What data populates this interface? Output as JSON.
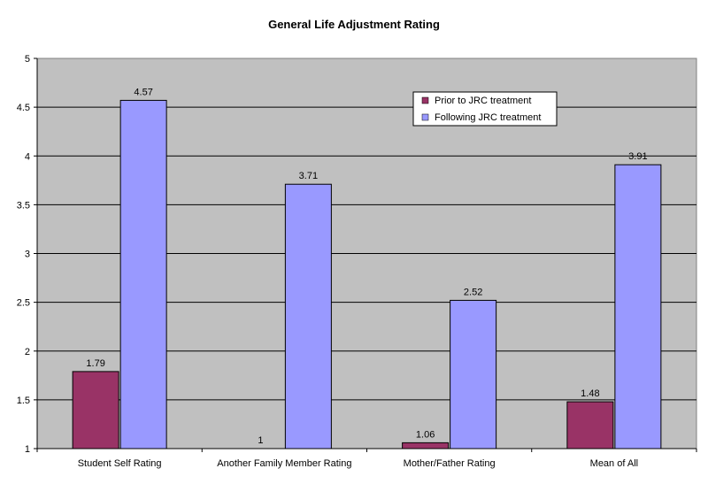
{
  "chart_data": {
    "type": "bar",
    "title": "General Life Adjustment Rating",
    "xlabel": "",
    "ylabel": "",
    "categories": [
      "Student Self Rating",
      "Another Family Member Rating",
      "Mother/Father Rating",
      "Mean of All"
    ],
    "series": [
      {
        "name": "Prior to JRC treatment",
        "color": "#993366",
        "values": [
          1.79,
          1.0,
          1.06,
          1.48
        ]
      },
      {
        "name": "Following JRC treatment",
        "color": "#9999ff",
        "values": [
          4.57,
          3.71,
          2.52,
          3.91
        ]
      }
    ],
    "ylim": [
      1,
      5
    ],
    "yticks": [
      "1",
      "1.5",
      "2",
      "2.5",
      "3",
      "3.5",
      "4",
      "4.5",
      "5"
    ],
    "grid": true,
    "legend_position": "top-right",
    "plot_background": "#c0c0c0",
    "data_labels": [
      [
        "1.79",
        "1",
        "1.06",
        "1.48"
      ],
      [
        "4.57",
        "3.71",
        "2.52",
        "3.91"
      ]
    ]
  }
}
